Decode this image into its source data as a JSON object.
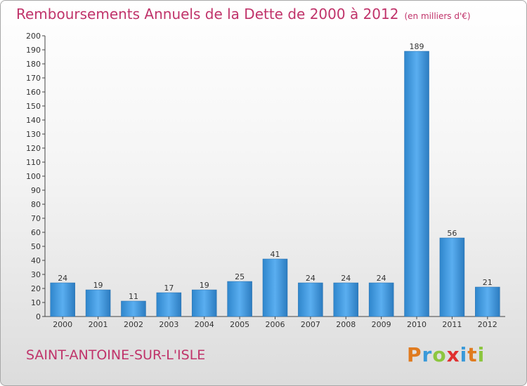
{
  "header": {
    "title": "Remboursements Annuels de la Dette de 2000 à 2012",
    "unit": "(en milliers d'€)"
  },
  "footer": {
    "city": "SAINT-ANTOINE-SUR-L'ISLE",
    "logo": {
      "letters": [
        "P",
        "r",
        "o",
        "x",
        "i",
        "t",
        "i"
      ],
      "colors": [
        "#e07b1f",
        "#3a9ad9",
        "#8cc63f",
        "#e03030",
        "#3a9ad9",
        "#e07b1f",
        "#8cc63f"
      ]
    }
  },
  "chart_data": {
    "type": "bar",
    "categories": [
      "2000",
      "2001",
      "2002",
      "2003",
      "2004",
      "2005",
      "2006",
      "2007",
      "2008",
      "2009",
      "2010",
      "2011",
      "2012"
    ],
    "values": [
      24,
      19,
      11,
      17,
      19,
      25,
      41,
      24,
      24,
      24,
      189,
      56,
      21
    ],
    "title": "Remboursements Annuels de la Dette de 2000 à 2012",
    "xlabel": "",
    "ylabel": "",
    "ylim": [
      0,
      200
    ],
    "ytick_step": 10,
    "grid": false,
    "data_labels": true,
    "bar_color": "#3d95d8"
  }
}
